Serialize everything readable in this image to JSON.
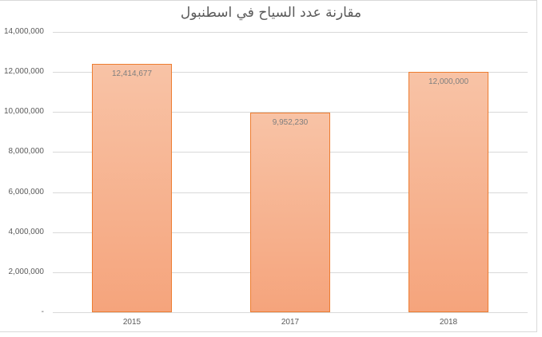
{
  "chart_data": {
    "type": "bar",
    "title": "مقارنة عدد السياح  في اسطنبول",
    "categories": [
      "2015",
      "2017",
      "2018"
    ],
    "values": [
      12414677,
      9952230,
      12000000
    ],
    "data_labels": [
      "12,414,677",
      "9,952,230",
      "12,000,000"
    ],
    "xlabel": "",
    "ylabel": "",
    "ylim": [
      0,
      14000000
    ],
    "yticks": [
      0,
      2000000,
      4000000,
      6000000,
      8000000,
      10000000,
      12000000,
      14000000
    ],
    "ytick_labels": [
      "-",
      "2,000,000",
      "4,000,000",
      "6,000,000",
      "8,000,000",
      "10,000,000",
      "12,000,000",
      "14,000,000"
    ],
    "grid": true,
    "legend": "none",
    "colors": {
      "bar_fill_top": "#f8c3a6",
      "bar_fill_bottom": "#f5a47c",
      "bar_border": "#ed7d31",
      "grid": "#d9d9d9",
      "text": "#595959"
    }
  }
}
